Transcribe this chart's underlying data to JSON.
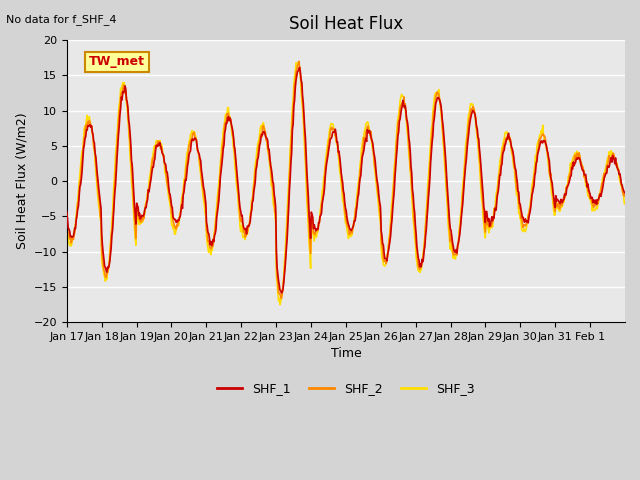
{
  "title": "Soil Heat Flux",
  "subtitle": "No data for f_SHF_4",
  "ylabel": "Soil Heat Flux (W/m2)",
  "xlabel": "Time",
  "ylim": [
    -20,
    20
  ],
  "yticks": [
    -20,
    -15,
    -10,
    -5,
    0,
    5,
    10,
    15,
    20
  ],
  "xtick_labels": [
    "Jan 17",
    "Jan 18",
    "Jan 19",
    "Jan 20",
    "Jan 21",
    "Jan 22",
    "Jan 23",
    "Jan 24",
    "Jan 25",
    "Jan 26",
    "Jan 27",
    "Jan 28",
    "Jan 29",
    "Jan 30",
    "Jan 31",
    "Feb 1"
  ],
  "legend_labels": [
    "SHF_1",
    "SHF_2",
    "SHF_3"
  ],
  "legend_colors": [
    "#cc0000",
    "#ff8800",
    "#ffdd00"
  ],
  "annotation_text": "TW_met",
  "annotation_box_color": "#ffff99",
  "annotation_text_color": "#cc0000",
  "annotation_box_edge_color": "#cc8800",
  "bg_color": "#d4d4d4",
  "plot_bg_color": "#e8e8e8",
  "grid_color": "#ffffff",
  "color_shf1": "#cc0000",
  "color_shf2": "#ff8800",
  "color_shf3": "#ffdd00",
  "line_width": 1.2,
  "n_days": 16
}
